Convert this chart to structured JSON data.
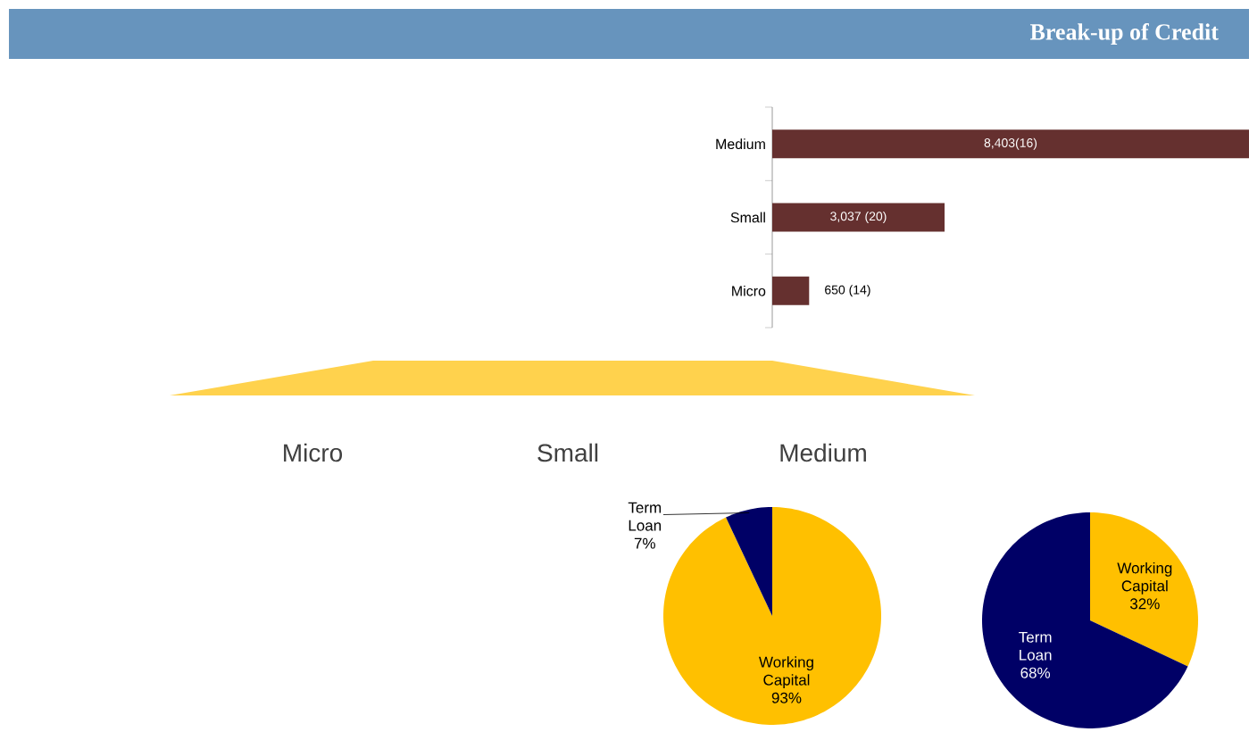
{
  "chart_data": [
    {
      "type": "bar",
      "title": "Break-up of Credit",
      "orientation": "horizontal",
      "categories": [
        "Medium",
        "Small",
        "Micro"
      ],
      "values": [
        8403,
        3037,
        650
      ],
      "color": "#65302f",
      "value_labels": [
        "8,403(16)",
        "3,037 (20)",
        "650 (14)"
      ]
    },
    {
      "type": "other",
      "annotations": [
        "Micro",
        "Small",
        "Medium"
      ]
    },
    {
      "type": "pie",
      "categories": [
        "Working Capital",
        "Term Loan"
      ],
      "values": [
        93,
        7
      ],
      "colors": [
        "#ffc000",
        "#000066"
      ],
      "value_labels": [
        "93%",
        "7%"
      ]
    },
    {
      "type": "pie",
      "categories": [
        "Working Capital",
        "Term Loan"
      ],
      "values": [
        32,
        68
      ],
      "colors": [
        "#ffc000",
        "#000066"
      ],
      "value_labels": [
        "32%",
        "68%"
      ]
    }
  ]
}
